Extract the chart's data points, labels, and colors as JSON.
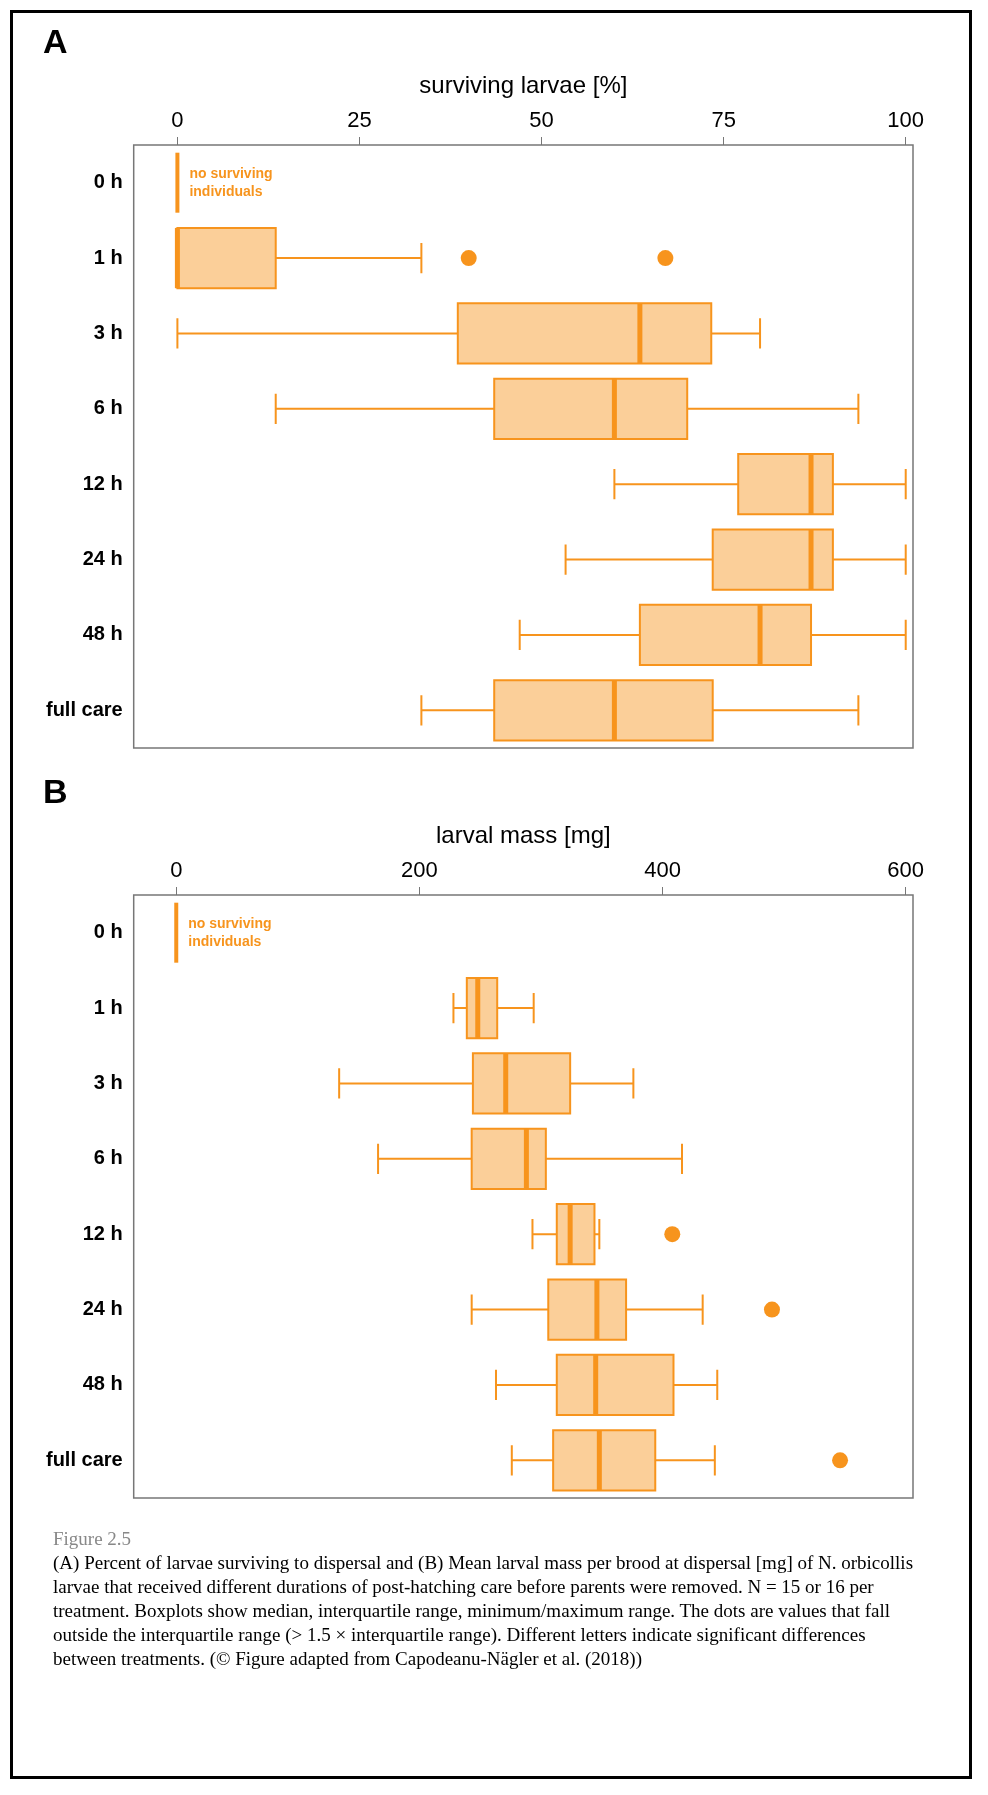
{
  "chart_data": [
    {
      "type": "box",
      "orientation": "horizontal",
      "title": "A",
      "xlabel": "surviving larvae [%]",
      "categories": [
        "0 h",
        "1 h",
        "3 h",
        "6 h",
        "12 h",
        "24 h",
        "48 h",
        "full care"
      ],
      "xlim": [
        -6,
        101
      ],
      "xticks": [
        0,
        25,
        50,
        75,
        100
      ],
      "series": [
        {
          "color": "#f7941d",
          "boxes": [
            null,
            {
              "low": 0,
              "q1": 0,
              "median": 0,
              "q3": 13.5,
              "high": 33.5,
              "outliers": [
                40,
                67
              ]
            },
            {
              "low": 0,
              "q1": 38.5,
              "median": 63.5,
              "q3": 73.3,
              "high": 80
            },
            {
              "low": 13.5,
              "q1": 43.5,
              "median": 60,
              "q3": 70,
              "high": 93.5
            },
            {
              "low": 60,
              "q1": 77,
              "median": 87,
              "q3": 90,
              "high": 100
            },
            {
              "low": 53.3,
              "q1": 73.5,
              "median": 87,
              "q3": 90,
              "high": 100
            },
            {
              "low": 47,
              "q1": 63.5,
              "median": 80,
              "q3": 87,
              "high": 100
            },
            {
              "low": 33.5,
              "q1": 43.5,
              "median": 60,
              "q3": 73.5,
              "high": 93.5
            }
          ]
        }
      ],
      "annotations": [
        "no surviving individuals"
      ]
    },
    {
      "type": "box",
      "orientation": "horizontal",
      "title": "B",
      "xlabel": "larval mass [mg]",
      "categories": [
        "0 h",
        "1 h",
        "3 h",
        "6 h",
        "12 h",
        "24 h",
        "48 h",
        "full care"
      ],
      "xlim": [
        -35,
        606
      ],
      "xticks": [
        0,
        200,
        400,
        600
      ],
      "series": [
        {
          "color": "#f7941d",
          "boxes": [
            null,
            {
              "low": 228,
              "q1": 239,
              "median": 248,
              "q3": 264,
              "high": 294
            },
            {
              "low": 134,
              "q1": 244,
              "median": 271,
              "q3": 324,
              "high": 376
            },
            {
              "low": 166,
              "q1": 243,
              "median": 288,
              "q3": 304,
              "high": 416
            },
            {
              "low": 293,
              "q1": 313,
              "median": 324,
              "q3": 344,
              "high": 348,
              "outliers": [
                408
              ]
            },
            {
              "low": 243,
              "q1": 306,
              "median": 346,
              "q3": 370,
              "high": 433,
              "outliers": [
                490
              ]
            },
            {
              "low": 263,
              "q1": 313,
              "median": 345,
              "q3": 409,
              "high": 445
            },
            {
              "low": 276,
              "q1": 310,
              "median": 348,
              "q3": 394,
              "high": 443,
              "outliers": [
                546
              ]
            }
          ]
        }
      ],
      "annotations": [
        "no surviving individuals",
        "Figure 2.5",
        "(A) Percent of larvae surviving to dispersal and (B) Mean larval mass per brood at dispersal [mg] of N. orbicollis larvae that received different durations of post-hatching care before parents were removed. N = 15 or 16 per treatment. Boxplots show median, interquartile range, minimum/maximum range. The dots are values that fall outside the interquartile range (> 1.5 × interquartile range). Different letters indicate significant differences between treatments. (© Figure adapted from Capodeanu-Nägler et al. (2018))"
      ]
    }
  ]
}
